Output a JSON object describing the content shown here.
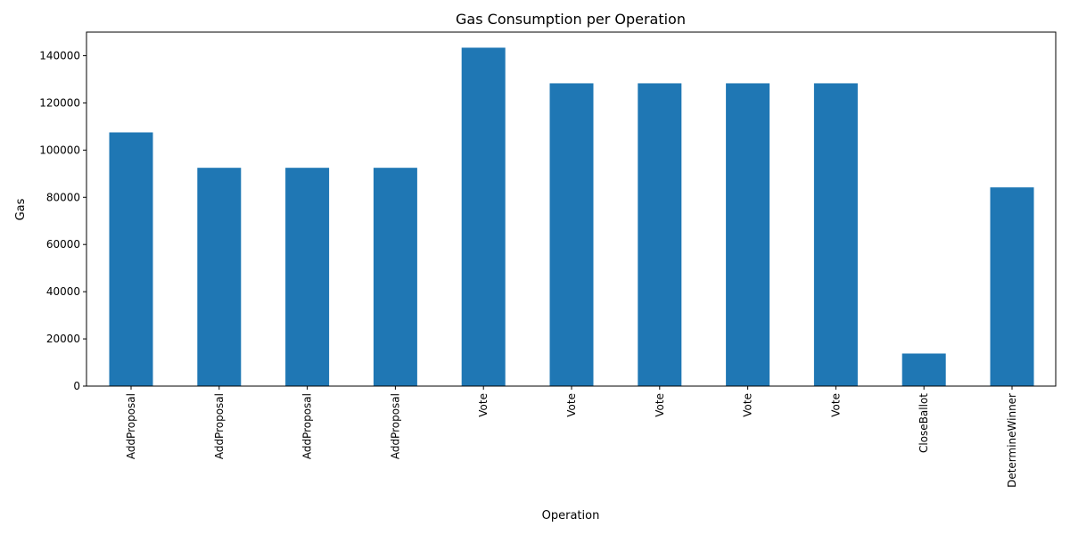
{
  "colors": {
    "bar": "#1f77b4",
    "axis": "#000000",
    "background": "#ffffff"
  },
  "chart_data": {
    "type": "bar",
    "title": "Gas Consumption per Operation",
    "xlabel": "Operation",
    "ylabel": "Gas",
    "categories": [
      "AddProposal",
      "AddProposal",
      "AddProposal",
      "AddProposal",
      "Vote",
      "Vote",
      "Vote",
      "Vote",
      "Vote",
      "CloseBallot",
      "DetermineWinner"
    ],
    "values": [
      107500,
      92500,
      92500,
      92500,
      143400,
      128300,
      128300,
      128300,
      128300,
      13800,
      84200
    ],
    "ylim": [
      0,
      150000
    ],
    "yticks": [
      0,
      20000,
      40000,
      60000,
      80000,
      100000,
      120000,
      140000
    ],
    "ytick_labels": [
      "0",
      "20000",
      "40000",
      "60000",
      "80000",
      "100000",
      "120000",
      "140000"
    ],
    "grid": false,
    "legend": false
  }
}
